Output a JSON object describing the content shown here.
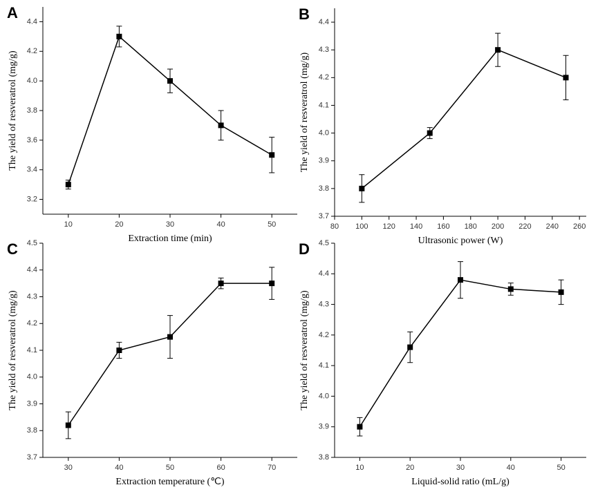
{
  "chart_data": [
    {
      "type": "line",
      "panel_label": "A",
      "x_label": "Extraction time (min)",
      "y_label": "The yield of resveratrol (mg/g)",
      "x": [
        10,
        20,
        30,
        40,
        50
      ],
      "values": [
        3.3,
        4.3,
        4.0,
        3.7,
        3.5
      ],
      "errors": [
        0.03,
        0.07,
        0.08,
        0.1,
        0.12
      ],
      "xlim": [
        5,
        55
      ],
      "ylim": [
        3.1,
        4.5
      ],
      "xticks": [
        10,
        20,
        30,
        40,
        50
      ],
      "yticks": [
        3.2,
        3.4,
        3.6,
        3.8,
        {
          "value": 4,
          "label": "4.0"
        },
        4.2,
        4.4
      ],
      "color": "#000000"
    },
    {
      "type": "line",
      "panel_label": "B",
      "x_label": "Ultrasonic power (W)",
      "y_label": "The yield of resveratrol (mg/g)",
      "x": [
        100,
        150,
        200,
        250
      ],
      "values": [
        3.8,
        4.0,
        4.3,
        4.2
      ],
      "errors": [
        0.05,
        0.02,
        0.06,
        0.08
      ],
      "xlim": [
        80,
        265
      ],
      "ylim": [
        3.7,
        4.45
      ],
      "xticks": [
        80,
        100,
        120,
        140,
        160,
        180,
        200,
        220,
        240,
        260
      ],
      "yticks": [
        3.7,
        3.8,
        3.9,
        {
          "value": 4,
          "label": "4.0"
        },
        4.1,
        4.2,
        4.3,
        4.4
      ],
      "color": "#000000"
    },
    {
      "type": "line",
      "panel_label": "C",
      "x_label": "Extraction temperature (℃)",
      "y_label": "The yield of resveratrol (mg/g)",
      "x": [
        30,
        40,
        50,
        60,
        70
      ],
      "values": [
        3.82,
        4.1,
        4.15,
        4.35,
        4.35
      ],
      "errors": [
        0.05,
        0.03,
        0.08,
        0.02,
        0.06
      ],
      "xlim": [
        25,
        75
      ],
      "ylim": [
        3.7,
        4.5
      ],
      "xticks": [
        30,
        40,
        50,
        60,
        70
      ],
      "yticks": [
        3.7,
        3.8,
        3.9,
        {
          "value": 4,
          "label": "4.0"
        },
        4.1,
        4.2,
        4.3,
        4.4,
        4.5
      ],
      "color": "#000000"
    },
    {
      "type": "line",
      "panel_label": "D",
      "x_label": "Liquid-solid ratio (mL/g)",
      "y_label": "The yield of resveratrol (mg/g)",
      "x": [
        10,
        20,
        30,
        40,
        50
      ],
      "values": [
        3.9,
        4.16,
        4.38,
        4.35,
        4.34
      ],
      "errors": [
        0.03,
        0.05,
        0.06,
        0.02,
        0.04
      ],
      "xlim": [
        5,
        55
      ],
      "ylim": [
        3.8,
        4.5
      ],
      "xticks": [
        10,
        20,
        30,
        40,
        50
      ],
      "yticks": [
        3.8,
        3.9,
        {
          "value": 4,
          "label": "4.0"
        },
        4.1,
        4.2,
        4.3,
        4.4,
        4.5
      ],
      "color": "#000000"
    }
  ]
}
